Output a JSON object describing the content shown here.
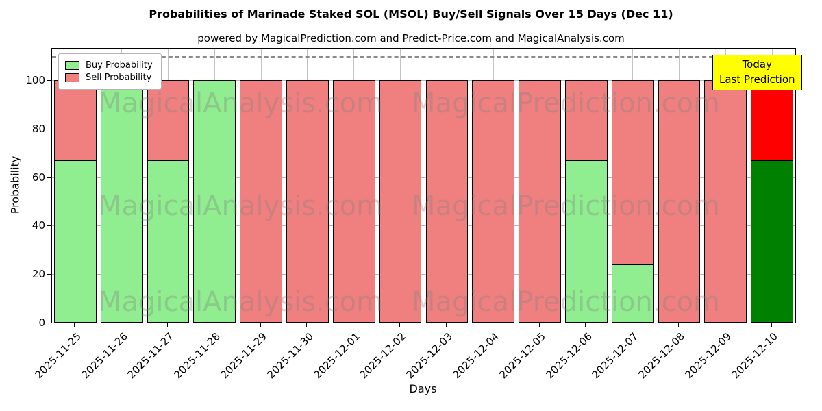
{
  "header": {
    "title": "Probabilities of Marinade Staked SOL (MSOL) Buy/Sell Signals Over 15 Days (Dec 11)",
    "subtitle": "powered by MagicalPrediction.com and Predict-Price.com and MagicalAnalysis.com"
  },
  "legend": {
    "items": [
      {
        "label": "Buy Probability",
        "color": "#90EE90"
      },
      {
        "label": "Sell Probability",
        "color": "#F08080"
      }
    ]
  },
  "annotation": {
    "line1": "Today",
    "line2": "Last Prediction"
  },
  "watermarks": [
    "MagicalAnalysis.com",
    "MagicalPrediction.com"
  ],
  "axes": {
    "xlabel": "Days",
    "ylabel": "Probability",
    "yticks": [
      0,
      20,
      40,
      60,
      80,
      100
    ]
  },
  "colors": {
    "buy": "#90EE90",
    "sell": "#F08080",
    "today_buy": "#008000",
    "today_sell": "#FF0000",
    "edge": "#000000",
    "grid": "#b8b8b8",
    "dashed": "#8a8a8a",
    "annotation_bg": "#FFFF00"
  },
  "chart_data": {
    "type": "bar",
    "stacked": true,
    "title": "Probabilities of Marinade Staked SOL (MSOL) Buy/Sell Signals Over 15 Days (Dec 11)",
    "xlabel": "Days",
    "ylabel": "Probability",
    "categories": [
      "2025-11-25",
      "2025-11-26",
      "2025-11-27",
      "2025-11-28",
      "2025-11-29",
      "2025-11-30",
      "2025-12-01",
      "2025-12-02",
      "2025-12-03",
      "2025-12-04",
      "2025-12-05",
      "2025-12-06",
      "2025-12-07",
      "2025-12-08",
      "2025-12-09",
      "2025-12-10"
    ],
    "series": [
      {
        "name": "Buy Probability",
        "values": [
          67,
          100,
          67,
          100,
          0,
          0,
          0,
          0,
          0,
          0,
          0,
          67,
          24,
          0,
          0,
          67
        ]
      },
      {
        "name": "Sell Probability",
        "values": [
          33,
          0,
          33,
          0,
          100,
          100,
          100,
          100,
          100,
          100,
          100,
          33,
          76,
          100,
          100,
          33
        ]
      }
    ],
    "today_index": 15,
    "ylim": [
      0,
      113
    ],
    "dashed_line_y": 110,
    "grid": true,
    "legend_position": "upper left"
  }
}
